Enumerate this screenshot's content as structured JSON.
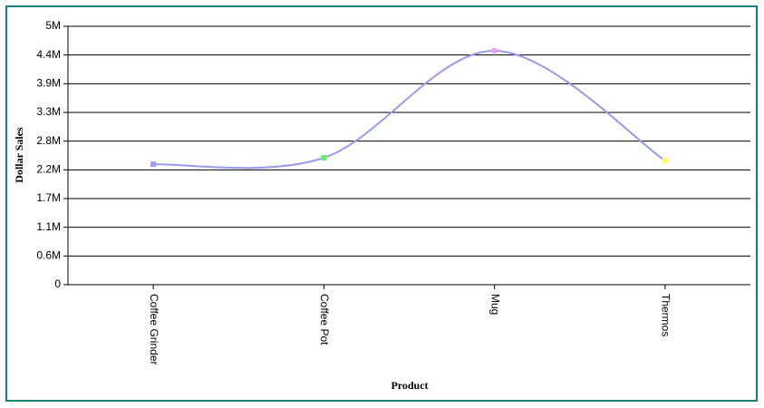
{
  "chart_data": {
    "type": "line",
    "smooth": true,
    "x_label": "Product",
    "y_label": "Dollar Sales",
    "categories": [
      "Coffee Grinder",
      "Coffee Pot",
      "Mug",
      "Thermos"
    ],
    "series": [
      {
        "name": "Dollar Sales",
        "color": "#9999ee",
        "values": [
          2330000,
          2456000,
          4526000,
          2400000
        ]
      }
    ],
    "marker_colors": [
      "#9999ff",
      "#66ee66",
      "#ff99ff",
      "#ffff66"
    ],
    "ylim": [
      0,
      5000000
    ],
    "yticks": [
      0,
      {
        "value": 555556,
        "label": "0.6M"
      },
      {
        "value": 1111111,
        "label": "1.1M"
      },
      {
        "value": 1666667,
        "label": "1.7M"
      },
      {
        "value": 2222222,
        "label": "2.2M"
      },
      {
        "value": 2777778,
        "label": "2.8M"
      },
      {
        "value": 3333333,
        "label": "3.3M"
      },
      {
        "value": 3888889,
        "label": "3.9M"
      },
      {
        "value": 4444444,
        "label": "4.4M"
      },
      {
        "value": 5000000,
        "label": "5M"
      }
    ],
    "grid": true
  }
}
